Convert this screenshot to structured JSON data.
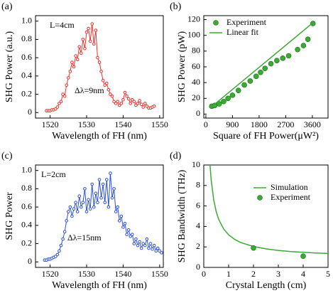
{
  "chart_data": [
    {
      "type": "line",
      "panel_label": "(a)",
      "xlabel": "Wavelength of FH (nm)",
      "ylabel": "SHG Power (a.u.)",
      "annotations": [
        "L=4cm",
        "Δλ=9nm"
      ],
      "xlim": [
        1516,
        1551
      ],
      "xticks": [
        1520,
        1530,
        1540,
        1550
      ],
      "ylim": [
        -0.06,
        1.06
      ],
      "yticks": [
        0,
        0.2,
        0.4,
        0.6,
        0.8,
        {
          "value": 1,
          "label": "1.0"
        }
      ],
      "series": [
        {
          "type": "line",
          "color": "#e8302a",
          "x": [
            1519,
            1519.5,
            1520,
            1520.5,
            1521,
            1521.5,
            1522,
            1522.5,
            1523,
            1523.5,
            1524,
            1524.5,
            1525,
            1525.5,
            1526,
            1526.5,
            1527,
            1527.5,
            1528,
            1528.5,
            1529,
            1529.5,
            1530,
            1530.5,
            1531,
            1531.5,
            1532,
            1532.5,
            1533,
            1533.5,
            1534,
            1534.5,
            1535,
            1535.5,
            1536,
            1536.5,
            1537,
            1537.5,
            1538,
            1538.5,
            1539,
            1539.5,
            1540,
            1540.5,
            1541,
            1541.5,
            1542,
            1542.5,
            1543,
            1543.5,
            1544,
            1544.5,
            1545,
            1545.5,
            1546,
            1546.5,
            1547,
            1547.5,
            1548,
            1548.5
          ],
          "values": [
            0.02,
            0.02,
            0.02,
            0.03,
            0.03,
            0.04,
            0.06,
            0.1,
            0.12,
            0.2,
            0.18,
            0.3,
            0.38,
            0.45,
            0.55,
            0.5,
            0.62,
            0.58,
            0.72,
            0.65,
            0.8,
            0.7,
            0.88,
            0.92,
            0.78,
            0.97,
            0.75,
            0.9,
            0.6,
            0.55,
            0.45,
            0.35,
            0.3,
            0.32,
            0.25,
            0.2,
            0.18,
            0.12,
            0.1,
            0.12,
            0.08,
            0.1,
            0.14,
            0.22,
            0.18,
            0.15,
            0.1,
            0.14,
            0.12,
            0.08,
            0.1,
            0.13,
            0.09,
            0.06,
            0.1,
            0.07,
            0.05,
            0.05,
            0.06,
            0.07
          ]
        }
      ]
    },
    {
      "type": "scatter",
      "panel_label": "(b)",
      "xlabel": "Square of  FH Power(μW²)",
      "ylabel": "SHG Power (pW)",
      "legend": "upper left",
      "xlim": [
        -70,
        4130
      ],
      "xticks": [
        0,
        900,
        1800,
        2700,
        3600
      ],
      "ylim": [
        -5,
        125
      ],
      "yticks": [
        0,
        20,
        40,
        60,
        80,
        100,
        120
      ],
      "series": [
        {
          "type": "scatter",
          "name": "Experiment",
          "color": "#3aaa35",
          "x": [
            200,
            300,
            450,
            600,
            750,
            900,
            1100,
            1300,
            1500,
            1700,
            1850,
            2000,
            2200,
            2400,
            2600,
            2800,
            3100,
            3300,
            3450,
            3620
          ],
          "values": [
            10,
            11,
            13,
            16,
            20,
            24,
            30,
            37,
            42,
            48,
            53,
            58,
            64,
            68,
            71,
            74,
            82,
            87,
            95,
            115
          ]
        },
        {
          "type": "line",
          "name": "Linear fit",
          "color": "#3aaa35",
          "x": [
            150,
            3650
          ],
          "values": [
            8,
            117
          ]
        }
      ]
    },
    {
      "type": "line",
      "panel_label": "(c)",
      "xlabel": "Wavelength of FH (nm)",
      "ylabel": "SHG Power",
      "annotations": [
        "L=2cm",
        "Δλ=15nm"
      ],
      "xlim": [
        1516,
        1551
      ],
      "xticks": [
        1520,
        1530,
        1540,
        1550
      ],
      "ylim": [
        -0.06,
        1.06
      ],
      "yticks": [
        0,
        0.2,
        0.4,
        0.6,
        0.8,
        {
          "value": 1,
          "label": "1.0"
        }
      ],
      "series": [
        {
          "type": "line",
          "color": "#2a4fd8",
          "x": [
            1518.5,
            1519,
            1519.5,
            1520,
            1520.5,
            1521,
            1521.5,
            1522,
            1522.5,
            1523,
            1523.5,
            1524,
            1524.5,
            1525,
            1525.5,
            1526,
            1526.5,
            1527,
            1527.5,
            1528,
            1528.5,
            1529,
            1529.5,
            1530,
            1530.5,
            1531,
            1531.5,
            1532,
            1532.5,
            1533,
            1533.5,
            1534,
            1534.5,
            1535,
            1535.5,
            1536,
            1536.5,
            1537,
            1537.5,
            1538,
            1538.5,
            1539,
            1539.5,
            1540,
            1540.5,
            1541,
            1541.5,
            1542,
            1542.5,
            1543,
            1543.5,
            1544,
            1544.5,
            1545,
            1545.5,
            1546,
            1546.5,
            1547,
            1547.5,
            1548,
            1548.5,
            1549,
            1549.5,
            1550,
            1550.5
          ],
          "values": [
            0.02,
            0.02,
            0.03,
            0.03,
            0.04,
            0.05,
            0.06,
            0.08,
            0.12,
            0.18,
            0.25,
            0.33,
            0.45,
            0.55,
            0.6,
            0.5,
            0.58,
            0.65,
            0.55,
            0.72,
            0.6,
            0.65,
            0.8,
            0.55,
            0.68,
            0.58,
            0.85,
            0.6,
            0.75,
            0.65,
            0.9,
            0.7,
            0.85,
            0.65,
            0.9,
            0.6,
            0.97,
            0.7,
            0.8,
            0.55,
            0.6,
            0.45,
            0.5,
            0.38,
            0.42,
            0.3,
            0.35,
            0.28,
            0.3,
            0.2,
            0.25,
            0.18,
            0.22,
            0.15,
            0.2,
            0.18,
            0.25,
            0.15,
            0.2,
            0.14,
            0.18,
            0.12,
            0.15,
            0.12,
            0.1
          ]
        }
      ]
    },
    {
      "type": "scatter",
      "panel_label": "(d)",
      "xlabel": "Crystal Length (cm)",
      "ylabel": "SHG Bandwidth (THz)",
      "legend": "upper right",
      "xlim": [
        0,
        5
      ],
      "xticks": [
        0,
        1,
        2,
        3,
        4,
        5
      ],
      "ylim": [
        0,
        10
      ],
      "yticks": [
        0,
        2,
        4,
        6,
        8,
        10
      ],
      "series": [
        {
          "type": "line",
          "name": "Simulation",
          "color": "#3aaa35",
          "x": [
            0.25,
            0.3,
            0.4,
            0.5,
            0.6,
            0.8,
            1,
            1.25,
            1.5,
            2,
            2.5,
            3,
            3.5,
            4,
            4.5,
            5
          ],
          "values": [
            10,
            8.49,
            6.59,
            5.45,
            4.69,
            3.75,
            3.18,
            2.72,
            2.42,
            2.04,
            1.81,
            1.66,
            1.55,
            1.47,
            1.41,
            1.36
          ]
        },
        {
          "type": "scatter",
          "name": "Experiment",
          "color": "#3aaa35",
          "x": [
            2,
            4
          ],
          "values": [
            1.9,
            1.1
          ]
        }
      ]
    }
  ]
}
